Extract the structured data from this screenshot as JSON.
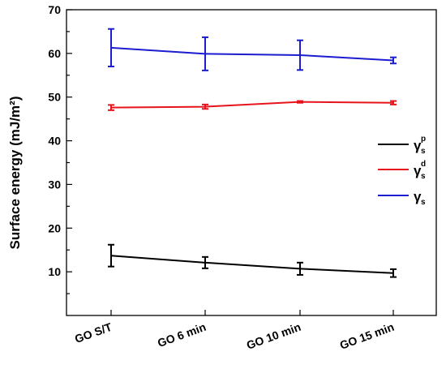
{
  "chart_data": {
    "type": "line",
    "categories": [
      "GO S/T",
      "GO 6 min",
      "GO 10 min",
      "GO 15 min"
    ],
    "ylabel": "Surface energy (mJ/m²)",
    "xlabel": "",
    "ylim": [
      0,
      70
    ],
    "yticks": [
      10,
      20,
      30,
      40,
      50,
      60,
      70
    ],
    "grid": false,
    "legend_position": "right",
    "series": [
      {
        "name": "γ",
        "sub": "s",
        "sup": "p",
        "color": "#000000",
        "values": [
          13.7,
          12.1,
          10.7,
          9.7
        ],
        "errors": [
          2.5,
          1.3,
          1.4,
          0.9
        ]
      },
      {
        "name": "γ",
        "sub": "s",
        "sup": "d",
        "color": "#e8141c",
        "values": [
          47.6,
          47.8,
          48.9,
          48.7
        ],
        "errors": [
          0.6,
          0.5,
          0.2,
          0.4
        ]
      },
      {
        "name": "γ",
        "sub": "s",
        "sup": "",
        "color": "#1c1cd0",
        "values": [
          61.3,
          59.9,
          59.6,
          58.4
        ],
        "errors": [
          4.3,
          3.8,
          3.4,
          0.7
        ]
      }
    ]
  }
}
